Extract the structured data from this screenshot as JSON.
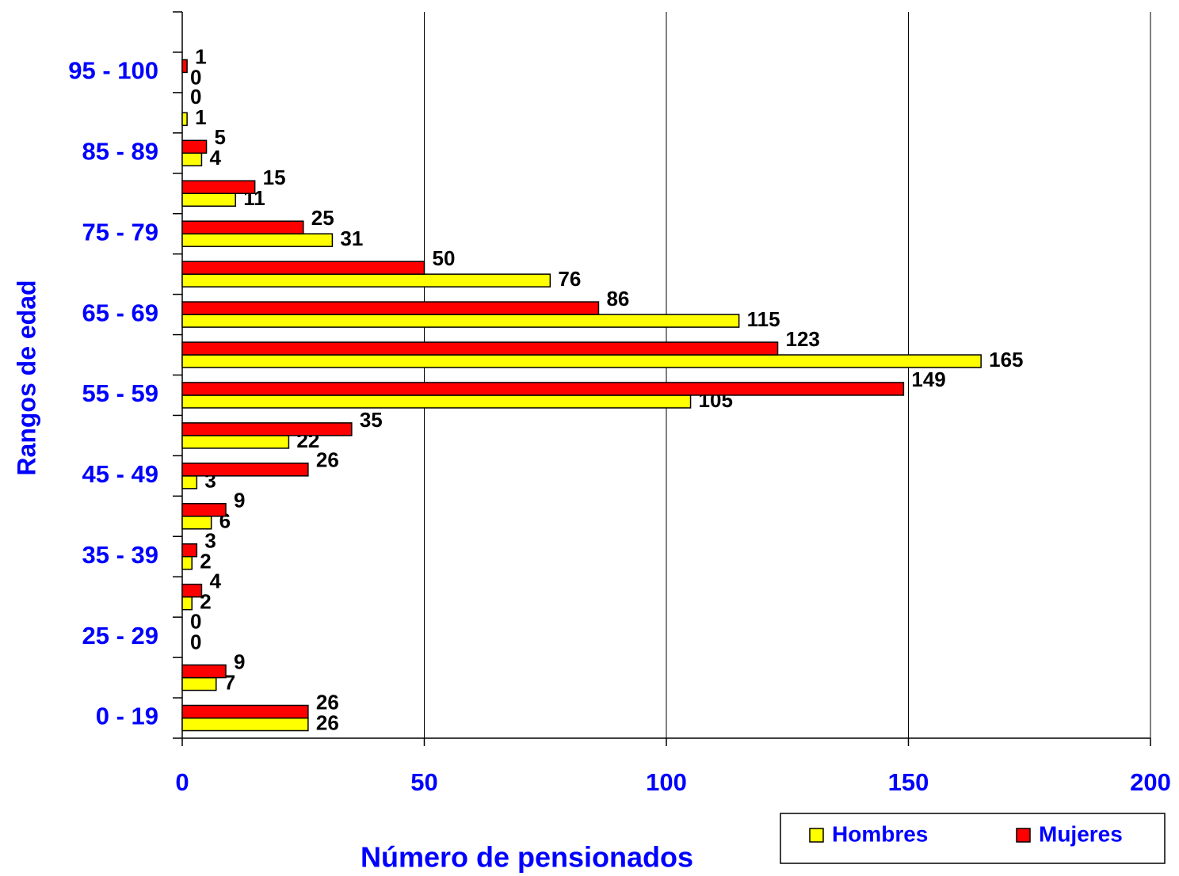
{
  "chart_data": {
    "type": "bar",
    "orientation": "horizontal",
    "xlabel": "Número de pensionados",
    "ylabel": "Rangos de edad",
    "categories": [
      "0 - 19",
      null,
      "25 - 29",
      null,
      "35 - 39",
      null,
      "45 - 49",
      null,
      "55 - 59",
      null,
      "65 - 69",
      null,
      "75 - 79",
      null,
      "85 - 89",
      null,
      "95 - 100"
    ],
    "series": [
      {
        "name": "Hombres",
        "color": "#ffff00",
        "values": [
          26,
          7,
          0,
          2,
          2,
          6,
          3,
          22,
          105,
          165,
          115,
          76,
          31,
          11,
          4,
          1,
          0
        ]
      },
      {
        "name": "Mujeres",
        "color": "#ff0000",
        "values": [
          26,
          9,
          0,
          4,
          3,
          9,
          26,
          35,
          149,
          123,
          86,
          50,
          25,
          15,
          5,
          0,
          1
        ]
      }
    ],
    "xlim": [
      0,
      200
    ],
    "xticks": [
      0,
      50,
      100,
      150,
      200
    ],
    "grid": true,
    "legend": "bottom-right"
  }
}
